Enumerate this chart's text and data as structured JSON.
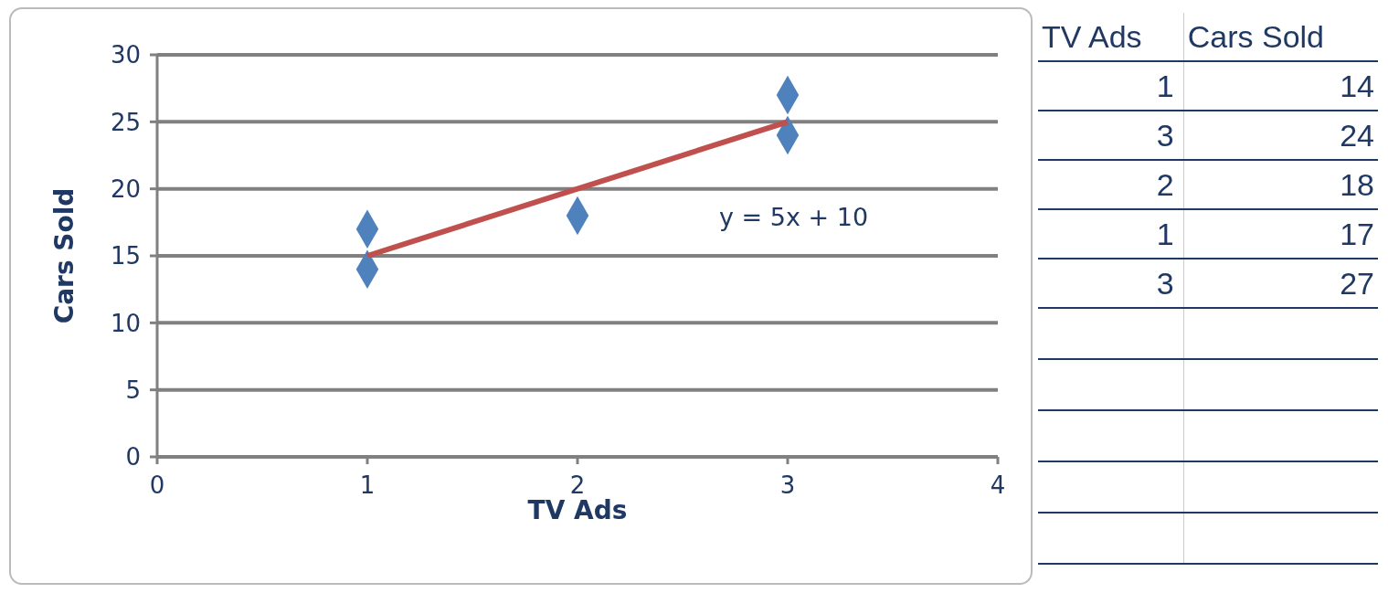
{
  "chart_data": [
    {
      "type": "scatter",
      "xlabel": "TV Ads",
      "ylabel": "Cars Sold",
      "xlim": [
        0,
        4
      ],
      "xticks": [
        0,
        1,
        2,
        3,
        4
      ],
      "ylim": [
        0,
        30
      ],
      "yticks": [
        0,
        5,
        10,
        15,
        20,
        25,
        30
      ],
      "grid": "y",
      "marker": "diamond",
      "series": [
        {
          "type": "scatter",
          "color": "#4f81bd",
          "x": [
            1,
            3,
            2,
            1,
            3
          ],
          "values": [
            14,
            24,
            18,
            17,
            27
          ]
        },
        {
          "type": "line",
          "color": "#c0504d",
          "x": [
            1,
            3
          ],
          "values": [
            15,
            25
          ],
          "marker": "none"
        }
      ],
      "annotations": [
        "y = 5x + 10"
      ]
    },
    {
      "type": "other",
      "xlabel": "TV Ads",
      "ylabel": "Cars Sold",
      "categories": [
        "1",
        "3",
        "2",
        "1",
        "3"
      ],
      "values": [
        14,
        24,
        18,
        17,
        27
      ],
      "data_labels": true
    }
  ]
}
